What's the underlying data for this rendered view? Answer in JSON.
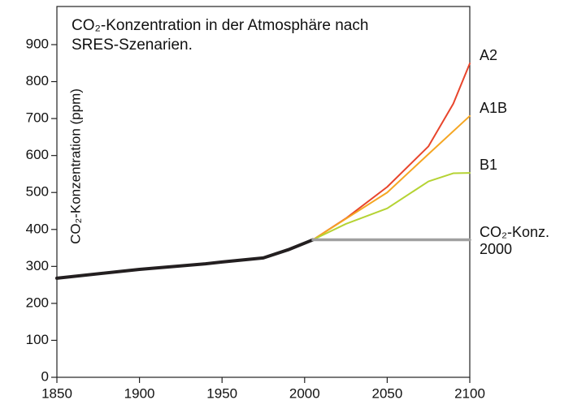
{
  "chart_data": {
    "type": "line",
    "title": "CO₂-Konzentration in der Atmosphäre nach SRES-Szenarien.",
    "y_label": "CO₂-Konzentration (ppm)",
    "xlim": [
      1850,
      2100
    ],
    "xticks": [
      1850,
      1900,
      1950,
      2000,
      2050,
      2100
    ],
    "ylim": [
      0,
      900
    ],
    "yticks": [
      0,
      100,
      200,
      300,
      400,
      500,
      600,
      700,
      800,
      900
    ],
    "series": [
      {
        "color": "#231f20",
        "x": [
          1850,
          1900,
          1940,
          1950,
          1975,
          1990,
          2005
        ],
        "values": [
          268,
          292,
          307,
          312,
          323,
          345,
          372
        ]
      },
      {
        "name": "A2",
        "color": "#e8452c",
        "x": [
          2005,
          2025,
          2050,
          2075,
          2090,
          2100
        ],
        "values": [
          372,
          430,
          515,
          625,
          740,
          849
        ]
      },
      {
        "name": "A1B",
        "color": "#f5a623",
        "x": [
          2005,
          2050,
          2075,
          2100
        ],
        "values": [
          372,
          500,
          604,
          707
        ]
      },
      {
        "name": "B1",
        "color": "#b5d334",
        "x": [
          2005,
          2025,
          2050,
          2075,
          2090,
          2100
        ],
        "values": [
          372,
          415,
          457,
          530,
          552,
          553
        ]
      },
      {
        "name": "CO₂-Konz. 2000",
        "color": "#a0a0a0",
        "x": [
          2005,
          2100
        ],
        "values": [
          372,
          372
        ]
      }
    ]
  }
}
